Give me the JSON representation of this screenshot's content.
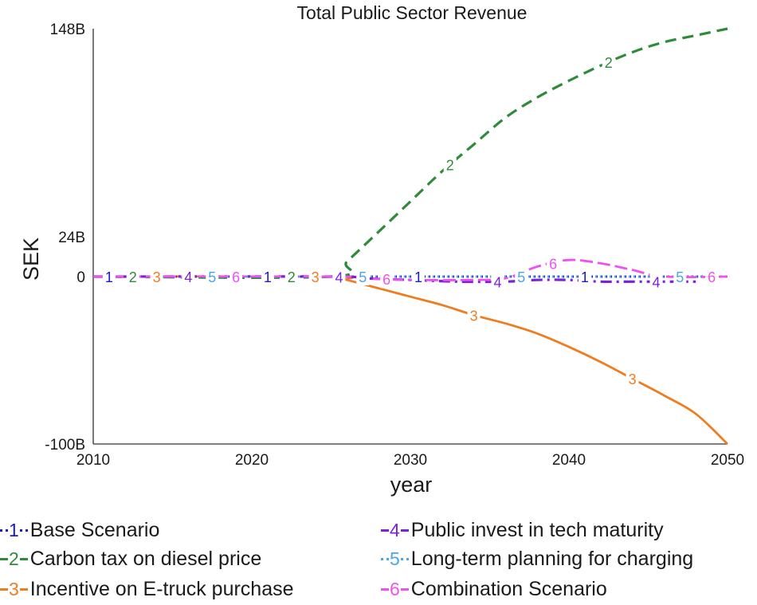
{
  "chart_data": {
    "type": "line",
    "title": "Total Public Sector Revenue",
    "xlabel": "year",
    "ylabel": "SEK",
    "xlim": [
      2010,
      2050
    ],
    "ylim": [
      -100,
      148
    ],
    "x_ticks": [
      2010,
      2020,
      2030,
      2040,
      2050
    ],
    "x_tick_labels": [
      "2010",
      "2020",
      "2030",
      "2040",
      "2050"
    ],
    "y_ticks": [
      -100,
      0,
      24,
      148
    ],
    "y_tick_labels": [
      "-100B",
      "0",
      "24B",
      "148B"
    ],
    "unit": "billion SEK",
    "series": [
      {
        "id": "1",
        "name": "Base Scenario",
        "color": "#1a1acc",
        "dash": "dots",
        "x": [
          2010,
          2025,
          2030,
          2035,
          2040,
          2045,
          2050
        ],
        "y": [
          0,
          0,
          0,
          0,
          0,
          0,
          0
        ]
      },
      {
        "id": "2",
        "name": "Carbon tax on diesel price",
        "color": "#2e8b3a",
        "dash": "dashed",
        "x": [
          2010,
          2025,
          2026,
          2028,
          2030,
          2032,
          2034,
          2036,
          2038,
          2040,
          2042,
          2044,
          2046,
          2048,
          2050
        ],
        "y": [
          0,
          0,
          9,
          27,
          45,
          63,
          79,
          95,
          107,
          117,
          126,
          134,
          140,
          144,
          148
        ]
      },
      {
        "id": "3",
        "name": "Incentive on E-truck purchase",
        "color": "#f07c20",
        "dash": "solid",
        "x": [
          2010,
          2025,
          2026,
          2028,
          2030,
          2032,
          2034,
          2036,
          2038,
          2040,
          2042,
          2044,
          2046,
          2048,
          2050
        ],
        "y": [
          0,
          0,
          -2,
          -7,
          -12,
          -17,
          -23,
          -28,
          -34,
          -42,
          -51,
          -61,
          -71,
          -82,
          -100
        ]
      },
      {
        "id": "4",
        "name": "Public invest in tech maturity",
        "color": "#7b1fe0",
        "dash": "dashdot",
        "x": [
          2010,
          2025,
          2027,
          2030,
          2033,
          2036,
          2038,
          2040,
          2042,
          2044,
          2046,
          2048
        ],
        "y": [
          0,
          0,
          -1,
          -2,
          -3,
          -3,
          -2,
          -2,
          -3,
          -3,
          -3,
          -3
        ]
      },
      {
        "id": "5",
        "name": "Long-term planning for charging",
        "color": "#4aa6e8",
        "dash": "dotted",
        "x": [
          2010,
          2025,
          2030,
          2035,
          2040,
          2045,
          2050
        ],
        "y": [
          0,
          0,
          0,
          0,
          0,
          0,
          0
        ]
      },
      {
        "id": "6",
        "name": "Combination Scenario",
        "color": "#f050f0",
        "dash": "dashed-solid",
        "x": [
          2010,
          2025,
          2027,
          2030,
          2034,
          2036,
          2038,
          2040,
          2042,
          2044,
          2046,
          2050
        ],
        "y": [
          0,
          0,
          -1,
          -2,
          -2,
          -1,
          6,
          10,
          8,
          4,
          0,
          0
        ]
      }
    ],
    "series_label_positions": {
      "1": [
        2011,
        2021,
        2030.5,
        2041
      ],
      "2": [
        2012.5,
        2022.5,
        2032.5,
        2042.5
      ],
      "3": [
        2014,
        2024,
        2034,
        2044
      ],
      "4": [
        2016,
        2025.5,
        2035.5,
        2045.5
      ],
      "5": [
        2017.5,
        2027,
        2037,
        2047
      ],
      "6": [
        2019,
        2028.5,
        2039,
        2049
      ]
    }
  }
}
